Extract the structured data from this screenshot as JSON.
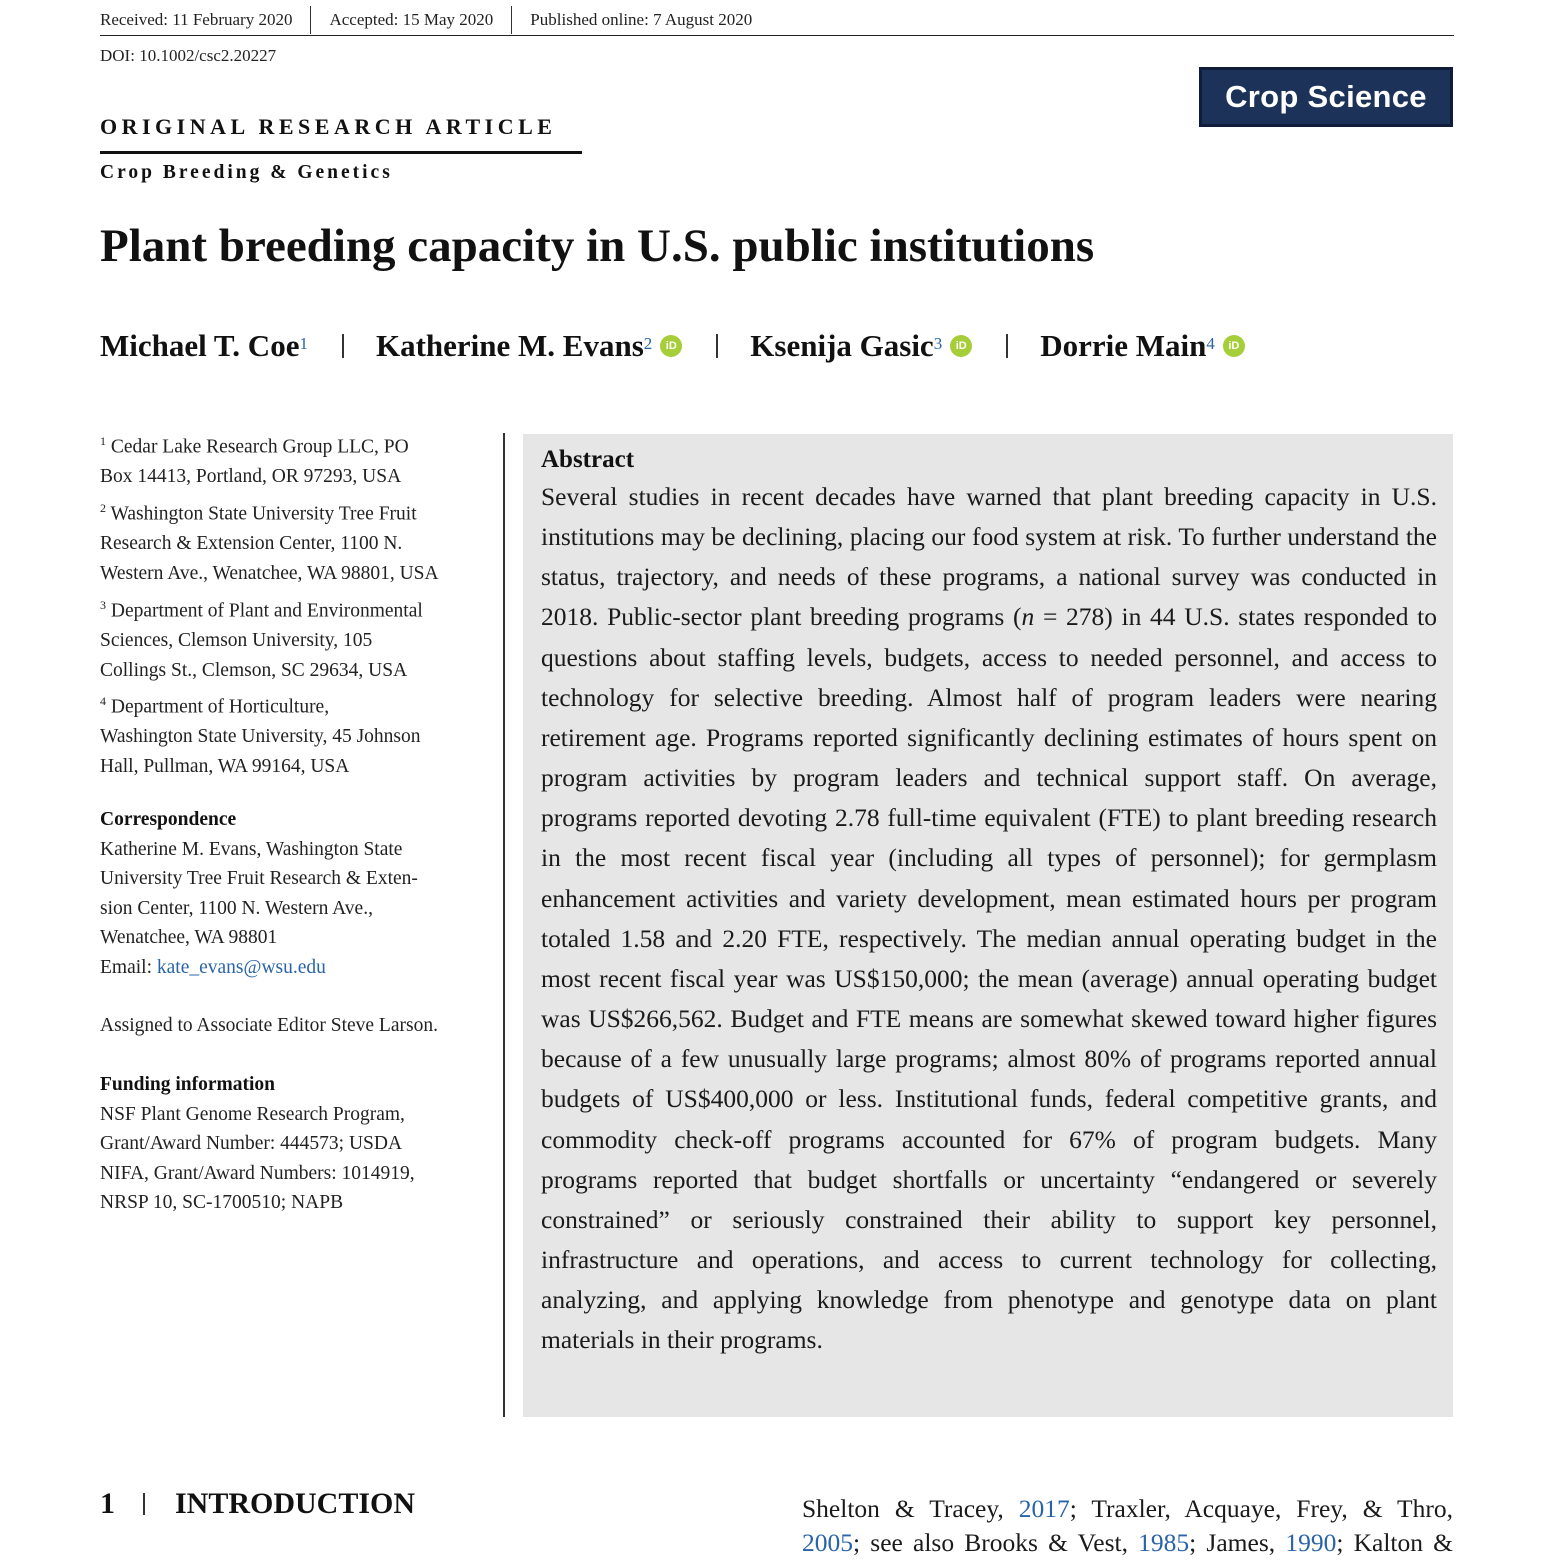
{
  "header": {
    "received": "Received: 11 February 2020",
    "accepted": "Accepted: 15 May 2020",
    "published": "Published online: 7 August 2020",
    "doi": "DOI: 10.1002/csc2.20227",
    "journal": "Crop Science",
    "article_type": "ORIGINAL RESEARCH ARTICLE",
    "subject": "Crop Breeding & Genetics"
  },
  "title": "Plant breeding capacity in U.S. public institutions",
  "authors": [
    {
      "name": "Michael T. Coe",
      "sup": "1"
    },
    {
      "name": "Katherine M. Evans",
      "sup": "2"
    },
    {
      "name": "Ksenija Gasic",
      "sup": "3"
    },
    {
      "name": "Dorrie Main",
      "sup": "4"
    }
  ],
  "orcid_label": "iD",
  "affiliations": [
    {
      "num": "1",
      "lines": [
        "Cedar Lake Research Group LLC, PO",
        "Box 14413, Portland, OR 97293, USA"
      ]
    },
    {
      "num": "2",
      "lines": [
        "Washington State University Tree Fruit",
        "Research & Extension Center, 1100 N.",
        "Western Ave., Wenatchee, WA 98801, USA"
      ]
    },
    {
      "num": "3",
      "lines": [
        "Department of Plant and Environmental",
        "Sciences, Clemson University, 105",
        "Collings St., Clemson, SC 29634, USA"
      ]
    },
    {
      "num": "4",
      "lines": [
        "Department of Horticulture,",
        "Washington State University, 45 Johnson",
        "Hall, Pullman, WA 99164, USA"
      ]
    }
  ],
  "correspondence": {
    "heading": "Correspondence",
    "lines": [
      "Katherine M. Evans, Washington State",
      "University Tree Fruit Research & Exten-",
      "sion Center, 1100 N. Western Ave.,",
      "Wenatchee, WA 98801"
    ],
    "email_label": "Email: ",
    "email": "kate_evans@wsu.edu"
  },
  "editor_note": "Assigned to Associate Editor Steve Larson.",
  "funding": {
    "heading": "Funding information",
    "lines": [
      "NSF Plant Genome Research Program,",
      "Grant/Award Number: 444573; USDA",
      "NIFA, Grant/Award Numbers: 1014919,",
      "NRSP 10, SC-1700510; NAPB"
    ]
  },
  "abstract": {
    "heading": "Abstract",
    "text_before_n": "Several studies in recent decades have warned that plant breeding capacity in U.S. institutions may be declining, placing our food system at risk. To further understand the status, trajectory, and needs of these programs, a national survey was conducted in 2018. Public-sector plant breeding programs (",
    "n_symbol": "n",
    "text_after_n": " = 278) in 44 U.S. states responded to questions about staffing levels, budgets, access to needed personnel, and access to technology for selective breeding. Almost half of program leaders were nearing retirement age. Programs reported significantly declining estimates of hours spent on program activities by program leaders and technical support staff. On average, programs reported devoting 2.78 full-time equivalent (FTE) to plant breeding research in the most recent fiscal year (including all types of personnel); for germplasm enhancement activities and variety development, mean estimated hours per program totaled 1.58 and 2.20 FTE, respectively. The median annual operating budget in the most recent fiscal year was US$150,000; the mean (average) annual operating budget was US$266,562. Budget and FTE means are somewhat skewed toward higher figures because of a few unusually large programs; almost 80% of programs reported annual budgets of US$400,000 or less. Institutional funds, federal competitive grants, and commodity check-off programs accounted for 67% of program budgets. Many programs reported that budget shortfalls or uncertainty “endangered or severely constrained” or seriously constrained their ability to support key personnel, infrastructure and operations, and access to current technology for collecting, analyzing, and applying knowledge from phenotype and genotype data on plant materials in their programs."
  },
  "intro": {
    "number": "1",
    "heading": "INTRODUCTION"
  },
  "refs": {
    "r1": "Shelton & Tracey, ",
    "y1": "2017",
    "r2": "; Traxler, Acquaye, Frey, & Thro,",
    "y2": "2005",
    "r3": "; see also Brooks & Vest, ",
    "y3": "1985",
    "r4": "; James, ",
    "y4": "1990",
    "r5": "; Kalton &"
  }
}
